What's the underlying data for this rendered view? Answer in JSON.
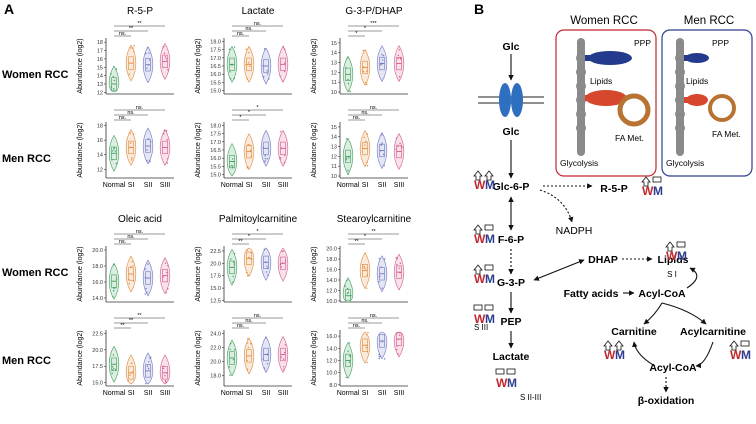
{
  "panel_a": {
    "label": "A",
    "row_labels": [
      "Women RCC",
      "Men RCC",
      "Women RCC",
      "Men RCC"
    ],
    "ylabel": "Abundance (log2)",
    "groups": [
      "Normal",
      "SI",
      "SII",
      "SIII"
    ],
    "group_colors": [
      "#3f9e5b",
      "#e08a3c",
      "#6f77c0",
      "#d45a8c"
    ],
    "titles": [
      "R-5-P",
      "Lactate",
      "G-3-P/DHAP",
      "Oleic acid",
      "Palmitoylcarnitine",
      "Stearoylcarnitine"
    ]
  },
  "chart_data": [
    {
      "type": "violin",
      "title": "R-5-P",
      "row": "Women RCC",
      "yticks": [
        "12",
        "13",
        "14",
        "15",
        "16",
        "17",
        "18"
      ],
      "ylim": [
        11.8,
        18.5
      ],
      "medians": [
        13.0,
        15.5,
        15.3,
        15.7
      ],
      "sig": [
        "ns.",
        "**",
        "**"
      ]
    },
    {
      "type": "violin",
      "title": "Lactate",
      "row": "Women RCC",
      "yticks": [
        "15.0",
        "15.5",
        "16.0",
        "16.5",
        "17.0",
        "17.5",
        "18.0"
      ],
      "ylim": [
        14.8,
        18.2
      ],
      "medians": [
        16.6,
        16.6,
        16.5,
        16.6
      ],
      "sig": [
        "ns.",
        "ns.",
        "ns."
      ]
    },
    {
      "type": "violin",
      "title": "G-3-P/DHAP",
      "row": "Women RCC",
      "yticks": [
        "10",
        "11",
        "12",
        "13",
        "14",
        "15"
      ],
      "ylim": [
        9.8,
        15.5
      ],
      "medians": [
        11.8,
        12.5,
        12.9,
        12.9
      ],
      "sig": [
        "*",
        "*",
        "***"
      ]
    },
    {
      "type": "violin",
      "title": "R-5-P",
      "row": "Men RCC",
      "yticks": [
        "12",
        "14",
        "16",
        "18"
      ],
      "ylim": [
        10.8,
        18.5
      ],
      "medians": [
        14.2,
        15.0,
        15.2,
        15.0
      ],
      "sig": [
        "ns.",
        "ns.",
        "ns."
      ]
    },
    {
      "type": "violin",
      "title": "Lactate",
      "row": "Men RCC",
      "yticks": [
        "15.0",
        "15.5",
        "16.0",
        "16.5",
        "17.0",
        "17.5",
        "18.0"
      ],
      "ylim": [
        14.8,
        18.2
      ],
      "medians": [
        15.8,
        16.4,
        16.6,
        16.6
      ],
      "sig": [
        "*",
        "*",
        "*"
      ]
    },
    {
      "type": "violin",
      "title": "G-3-P/DHAP",
      "row": "Men RCC",
      "yticks": [
        "10",
        "11",
        "12",
        "13",
        "14",
        "15"
      ],
      "ylim": [
        9.8,
        15.5
      ],
      "medians": [
        12.0,
        12.8,
        12.6,
        12.5
      ],
      "sig": [
        "ns.",
        "ns.",
        "ns."
      ]
    },
    {
      "type": "violin",
      "title": "Oleic acid",
      "row": "Women RCC",
      "yticks": [
        "14.0",
        "16.0",
        "18.0",
        "20.0"
      ],
      "ylim": [
        13.5,
        20.5
      ],
      "medians": [
        16.1,
        17.0,
        16.5,
        16.8
      ],
      "sig": [
        "ns.",
        "ns.",
        "ns."
      ]
    },
    {
      "type": "violin",
      "title": "Palmitoylcarnitine",
      "row": "Women RCC",
      "yticks": [
        "12.5",
        "15.0",
        "17.5",
        "20.0",
        "22.5"
      ],
      "ylim": [
        12.2,
        23.5
      ],
      "medians": [
        19.2,
        21.0,
        20.2,
        20.0
      ],
      "sig": [
        "**",
        "*",
        "*"
      ]
    },
    {
      "type": "violin",
      "title": "Stearoylcarnitine",
      "row": "Women RCC",
      "yticks": [
        "10.0",
        "12.0",
        "14.0",
        "16.0",
        "18.0",
        "20.0"
      ],
      "ylim": [
        9.8,
        20.5
      ],
      "medians": [
        11.0,
        15.8,
        15.2,
        15.5
      ],
      "sig": [
        "**",
        "*",
        "**"
      ]
    },
    {
      "type": "violin",
      "title": "Oleic acid",
      "row": "Men RCC",
      "yticks": [
        "15.0",
        "17.5",
        "20.0",
        "22.5"
      ],
      "ylim": [
        14.5,
        23.0
      ],
      "medians": [
        17.8,
        16.5,
        16.8,
        16.5
      ],
      "sig": [
        "**",
        "**",
        "**"
      ]
    },
    {
      "type": "violin",
      "title": "Palmitoylcarnitine",
      "row": "Men RCC",
      "yticks": [
        "18.0",
        "20.0",
        "22.0",
        "24.0"
      ],
      "ylim": [
        16.5,
        24.5
      ],
      "medians": [
        20.5,
        20.8,
        21.0,
        21.0
      ],
      "sig": [
        "ns.",
        "ns.",
        "ns."
      ]
    },
    {
      "type": "violin",
      "title": "Stearoylcarnitine",
      "row": "Men RCC",
      "yticks": [
        "8.0",
        "10.0",
        "12.0",
        "14.0",
        "16.0"
      ],
      "ylim": [
        7.8,
        17.0
      ],
      "medians": [
        12.0,
        14.5,
        15.2,
        15.5
      ],
      "sig": [
        "ns.",
        "ns.",
        "ns."
      ]
    }
  ],
  "panel_b": {
    "label": "B",
    "women_title": "Women RCC",
    "men_title": "Men RCC",
    "cell_labels": {
      "ppp": "PPP",
      "lipids": "Lipids",
      "fa": "FA Met.",
      "glycolysis": "Glycolysis"
    },
    "nodes": {
      "glc_out": "Glc",
      "glc_in": "Glc",
      "g6p": "Glc-6-P",
      "f6p": "F-6-P",
      "g3p": "G-3-P",
      "pep": "PEP",
      "lactate": "Lactate",
      "r5p": "R-5-P",
      "nadph": "NADPH",
      "dhap": "DHAP",
      "lipids": "Lipids",
      "fatty_acids": "Fatty acids",
      "acylcoa1": "Acyl-CoA",
      "carnitine": "Carnitine",
      "acylcarnitine": "Acylcarnitine",
      "acylcoa2": "Acyl-CoA",
      "beta": "β-oxidation"
    },
    "wm": {
      "w": "W",
      "m": "M"
    },
    "stage_notes": {
      "lipids": "S I",
      "g3p": "S III",
      "lactate": "S II-III"
    },
    "colors": {
      "women": "#c0282d",
      "men": "#2e3d8f",
      "transporter": "#2f6fc0",
      "gray": "#8a8a8a",
      "ppp_blue": "#243a8c",
      "lipid_red": "#d7472e",
      "fa_brown": "#b87333"
    }
  }
}
